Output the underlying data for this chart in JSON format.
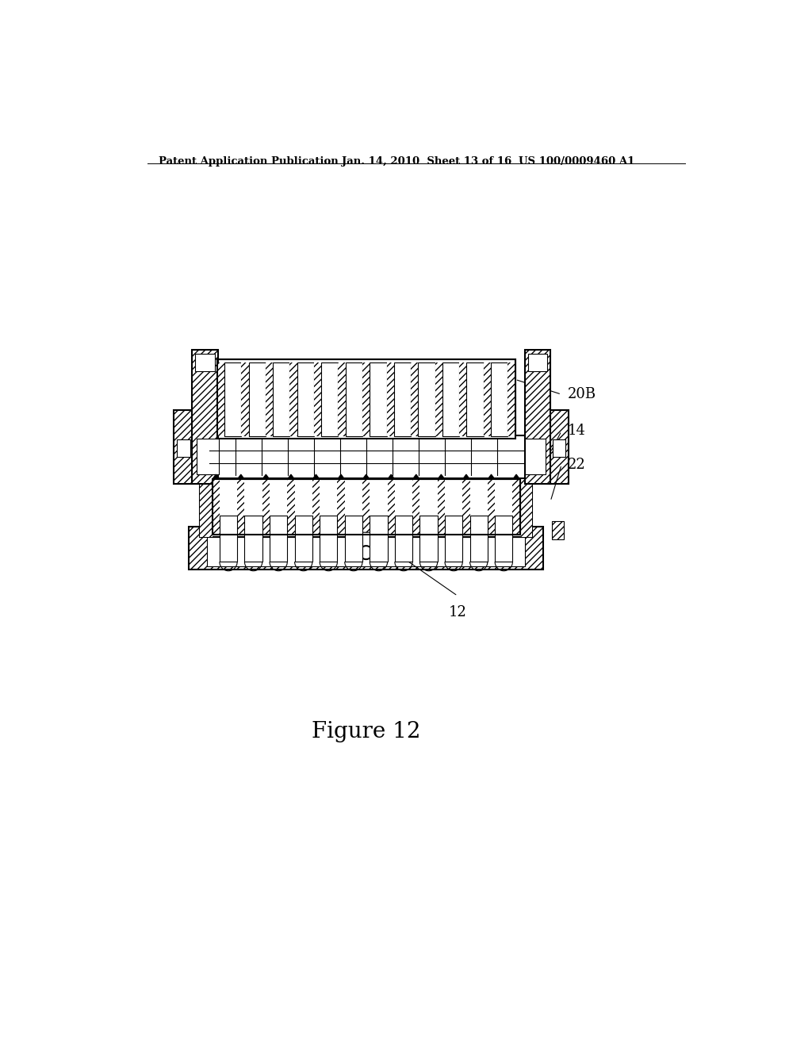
{
  "bg_color": "#ffffff",
  "line_color": "#000000",
  "header_left": "Patent Application Publication",
  "header_mid": "Jan. 14, 2010  Sheet 13 of 16",
  "header_right": "US 100/0009460 A1",
  "figure_label": "Figure 12",
  "n_tubes": 12,
  "n_wells": 12
}
